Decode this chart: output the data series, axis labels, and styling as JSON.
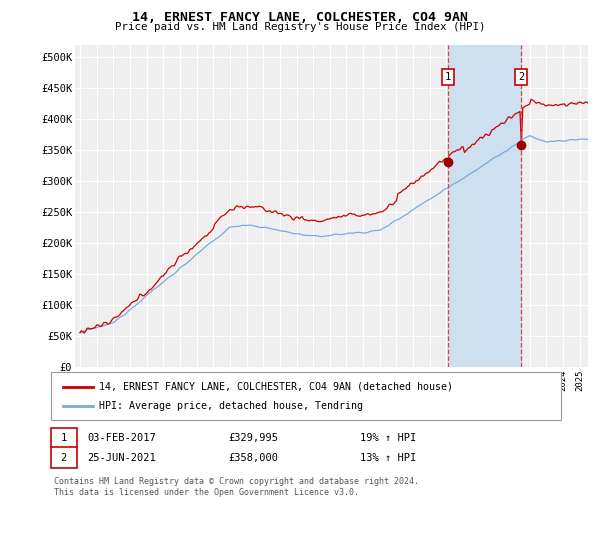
{
  "title": "14, ERNEST FANCY LANE, COLCHESTER, CO4 9AN",
  "subtitle": "Price paid vs. HM Land Registry's House Price Index (HPI)",
  "ylabel_ticks": [
    "£0",
    "£50K",
    "£100K",
    "£150K",
    "£200K",
    "£250K",
    "£300K",
    "£350K",
    "£400K",
    "£450K",
    "£500K"
  ],
  "ytick_values": [
    0,
    50000,
    100000,
    150000,
    200000,
    250000,
    300000,
    350000,
    400000,
    450000,
    500000
  ],
  "xlim_start": 1995.0,
  "xlim_end": 2025.5,
  "ylim": [
    0,
    520000
  ],
  "background_color": "#ffffff",
  "plot_bg_color": "#efefef",
  "grid_color": "#ffffff",
  "legend_label_red": "14, ERNEST FANCY LANE, COLCHESTER, CO4 9AN (detached house)",
  "legend_label_blue": "HPI: Average price, detached house, Tendring",
  "sale1_date": "03-FEB-2017",
  "sale1_price": "£329,995",
  "sale1_hpi": "19% ↑ HPI",
  "sale2_date": "25-JUN-2021",
  "sale2_price": "£358,000",
  "sale2_hpi": "13% ↑ HPI",
  "footnote": "Contains HM Land Registry data © Crown copyright and database right 2024.\nThis data is licensed under the Open Government Licence v3.0.",
  "sale1_x": 2017.09,
  "sale1_y": 329995,
  "sale2_x": 2021.48,
  "sale2_y": 358000,
  "red_color": "#cc0000",
  "blue_color": "#7aaadd",
  "sale_marker_color": "#990000",
  "vline_color": "#dd4444",
  "span_color": "#cce0f0"
}
